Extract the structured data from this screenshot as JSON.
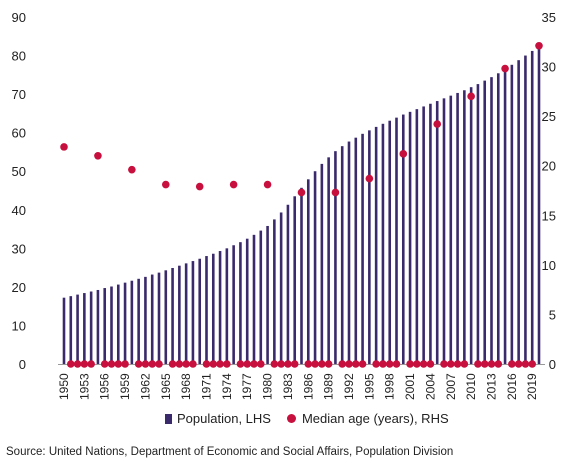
{
  "chart_data": {
    "type": "bar",
    "source": "Source: United Nations, Department of Economic and Social Affairs, Population Division",
    "x": [
      1950,
      1951,
      1952,
      1953,
      1954,
      1955,
      1956,
      1957,
      1958,
      1959,
      1960,
      1961,
      1962,
      1963,
      1964,
      1965,
      1966,
      1967,
      1968,
      1969,
      1970,
      1971,
      1972,
      1973,
      1974,
      1975,
      1976,
      1977,
      1978,
      1979,
      1980,
      1981,
      1982,
      1983,
      1984,
      1985,
      1986,
      1987,
      1988,
      1989,
      1990,
      1991,
      1992,
      1993,
      1994,
      1995,
      1996,
      1997,
      1998,
      1999,
      2000,
      2001,
      2002,
      2003,
      2004,
      2005,
      2006,
      2007,
      2008,
      2009,
      2010,
      2011,
      2012,
      2013,
      2014,
      2015,
      2016,
      2017,
      2018,
      2019,
      2020
    ],
    "xtick_labels": [
      "1950",
      "1953",
      "1956",
      "1959",
      "1962",
      "1965",
      "1968",
      "1971",
      "1974",
      "1977",
      "1980",
      "1983",
      "1986",
      "1989",
      "1992",
      "1995",
      "1998",
      "2001",
      "2004",
      "2007",
      "2010",
      "2013",
      "2016",
      "2019"
    ],
    "y_left": {
      "ylim": [
        0,
        90
      ],
      "ticks": [
        0,
        10,
        20,
        30,
        40,
        50,
        60,
        70,
        80,
        90
      ]
    },
    "y_right": {
      "ylim": [
        0,
        35
      ],
      "ticks": [
        0,
        5,
        10,
        15,
        20,
        25,
        30,
        35
      ]
    },
    "series": [
      {
        "name": "Population, LHS",
        "type": "bar",
        "axis": "left",
        "color": "#3b2a6b",
        "values": [
          17.2,
          17.6,
          18.0,
          18.4,
          18.8,
          19.2,
          19.7,
          20.1,
          20.6,
          21.1,
          21.6,
          22.1,
          22.6,
          23.2,
          23.7,
          24.3,
          24.9,
          25.5,
          26.1,
          26.7,
          27.3,
          28.0,
          28.6,
          29.3,
          30.0,
          30.8,
          31.6,
          32.5,
          33.5,
          34.6,
          35.8,
          37.5,
          39.3,
          41.3,
          43.5,
          45.7,
          47.9,
          50.0,
          51.9,
          53.6,
          55.2,
          56.5,
          57.7,
          58.7,
          59.7,
          60.6,
          61.5,
          62.3,
          63.1,
          63.9,
          64.7,
          65.4,
          66.1,
          66.8,
          67.5,
          68.2,
          68.9,
          69.6,
          70.3,
          71.0,
          71.8,
          72.6,
          73.5,
          74.4,
          75.4,
          76.5,
          77.6,
          78.8,
          80.0,
          81.2,
          82.4
        ]
      },
      {
        "name": "Median age (years), RHS",
        "type": "scatter",
        "axis": "right",
        "color": "#c8103e",
        "x": [
          1950,
          1951,
          1952,
          1953,
          1954,
          1955,
          1956,
          1957,
          1958,
          1959,
          1960,
          1961,
          1962,
          1963,
          1964,
          1965,
          1966,
          1967,
          1968,
          1969,
          1970,
          1971,
          1972,
          1973,
          1974,
          1975,
          1976,
          1977,
          1978,
          1979,
          1980,
          1981,
          1982,
          1983,
          1984,
          1985,
          1986,
          1987,
          1988,
          1989,
          1990,
          1991,
          1992,
          1993,
          1994,
          1995,
          1996,
          1997,
          1998,
          1999,
          2000,
          2001,
          2002,
          2003,
          2004,
          2005,
          2006,
          2007,
          2008,
          2009,
          2010,
          2011,
          2012,
          2013,
          2014,
          2015,
          2016,
          2017,
          2018,
          2019,
          2020
        ],
        "values": [
          21.9,
          0,
          0,
          0,
          0,
          21.0,
          0,
          0,
          0,
          0,
          19.6,
          0,
          0,
          0,
          0,
          18.1,
          0,
          0,
          0,
          0,
          17.9,
          0,
          0,
          0,
          0,
          18.1,
          0,
          0,
          0,
          0,
          18.1,
          0,
          0,
          0,
          0,
          17.3,
          0,
          0,
          0,
          0,
          17.3,
          0,
          0,
          0,
          0,
          18.7,
          0,
          0,
          0,
          0,
          21.2,
          0,
          0,
          0,
          0,
          24.2,
          0,
          0,
          0,
          0,
          27.0,
          0,
          0,
          0,
          0,
          29.8,
          0,
          0,
          0,
          0,
          32.1
        ]
      }
    ]
  },
  "legend": {
    "population_label": "Population, LHS",
    "median_label": "Median age (years), RHS"
  },
  "footer": {
    "source_text": "Source: United Nations, Department of Economic and Social Affairs, Population Division"
  }
}
